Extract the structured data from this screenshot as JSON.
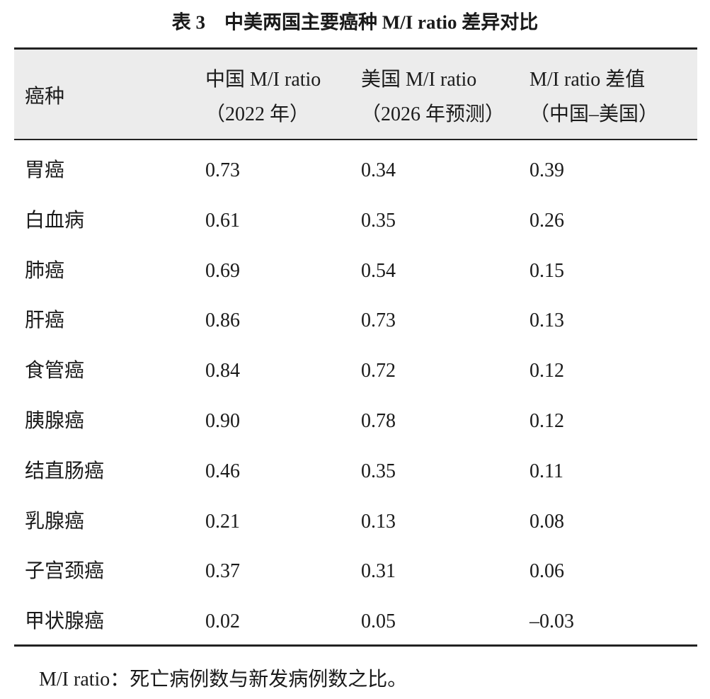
{
  "title": "表 3　中美两国主要癌种 M/I ratio 差异对比",
  "table": {
    "header": [
      [
        "癌种"
      ],
      [
        "中国 M/I ratio",
        "（2022 年）"
      ],
      [
        "美国 M/I ratio",
        "（2026 年预测）"
      ],
      [
        "M/I ratio 差值",
        "（中国–美国）"
      ]
    ],
    "rows": [
      [
        "胃癌",
        "0.73",
        "0.34",
        "0.39"
      ],
      [
        "白血病",
        "0.61",
        "0.35",
        "0.26"
      ],
      [
        "肺癌",
        "0.69",
        "0.54",
        "0.15"
      ],
      [
        "肝癌",
        "0.86",
        "0.73",
        "0.13"
      ],
      [
        "食管癌",
        "0.84",
        "0.72",
        "0.12"
      ],
      [
        "胰腺癌",
        "0.90",
        "0.78",
        "0.12"
      ],
      [
        "结直肠癌",
        "0.46",
        "0.35",
        "0.11"
      ],
      [
        "乳腺癌",
        "0.21",
        "0.13",
        "0.08"
      ],
      [
        "子宫颈癌",
        "0.37",
        "0.31",
        "0.06"
      ],
      [
        "甲状腺癌",
        "0.02",
        "0.05",
        "–0.03"
      ]
    ]
  },
  "footnote": "M/I ratio：死亡病例数与新发病例数之比。"
}
